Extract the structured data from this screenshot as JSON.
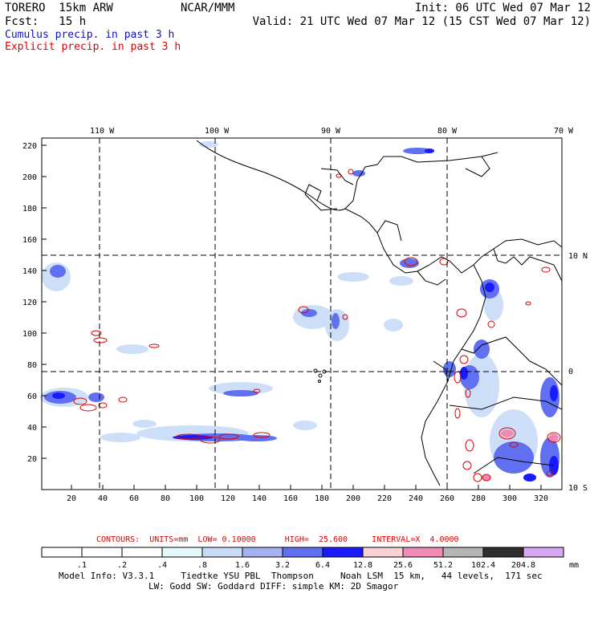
{
  "header": {
    "model": "TORERO  15km ARW",
    "center": "NCAR/MMM",
    "init": "Init: 06 UTC Wed 07 Mar 12",
    "fcst": "Fcst:   15 h",
    "valid": "Valid: 21 UTC Wed 07 Mar 12 (15 CST Wed 07 Mar 12)",
    "legend_cumulus": "Cumulus precip. in past 3 h",
    "legend_explicit": "Explicit precip. in past 3 h",
    "color_cumulus": "#1010c0",
    "color_explicit": "#e00000"
  },
  "map": {
    "top_labels": [
      "110 W",
      "100 W",
      "90 W",
      "80 W",
      "70 W"
    ],
    "right_labels": [
      "10 N",
      "0",
      "10 S"
    ],
    "y_ticks": [
      "220",
      "200",
      "180",
      "160",
      "140",
      "120",
      "100",
      "80",
      "60",
      "40",
      "20"
    ],
    "x_ticks": [
      "20",
      "40",
      "60",
      "80",
      "100",
      "120",
      "140",
      "160",
      "180",
      "200",
      "220",
      "240",
      "260",
      "280",
      "300",
      "320"
    ]
  },
  "contours": {
    "text": "CONTOURS:  UNITS=mm  LOW= 0.10000      HIGH=  25.600     INTERVAL=X  4.0000"
  },
  "colorbar": {
    "labels": [
      ".1",
      ".2",
      ".4",
      ".8",
      "1.6",
      "3.2",
      "6.4",
      "12.8",
      "25.6",
      "51.2",
      "102.4",
      "204.8"
    ],
    "unit": "mm",
    "colors": [
      "#ffffff",
      "#ffffff",
      "#ffffff",
      "#e6f8fc",
      "#c8dcf8",
      "#a4b0f0",
      "#6070f0",
      "#1a1aff",
      "#f8d2d2",
      "#f08cb4",
      "#b4b4b4",
      "#2e2e2e",
      "#d8a8f4"
    ]
  },
  "footer": {
    "line1": "Model Info: V3.3.1     Tiedtke YSU PBL  Thompson     Noah LSM  15 km,   44 levels,  171 sec",
    "line2": "LW: Godd SW: Goddard DIFF: simple KM: 2D Smagor"
  }
}
